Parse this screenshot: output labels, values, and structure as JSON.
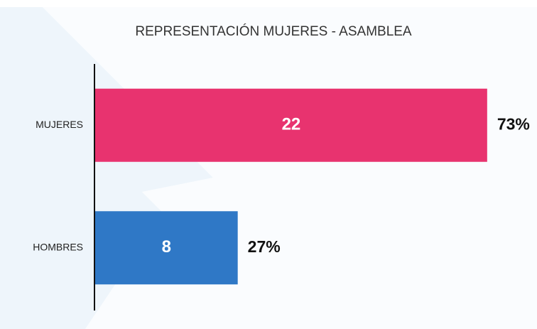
{
  "chart_data": {
    "type": "hbar",
    "title": "REPRESENTACIÓN MUJERES - ASAMBLEA",
    "categories": [
      "MUJERES",
      "HOMBRES"
    ],
    "values": [
      22,
      8
    ],
    "colors": [
      "#e8336f",
      "#2f78c6"
    ],
    "percentages": [
      73,
      27
    ],
    "percentage_labels": [
      "73%",
      "27%"
    ],
    "xlim": [
      0,
      24
    ]
  }
}
